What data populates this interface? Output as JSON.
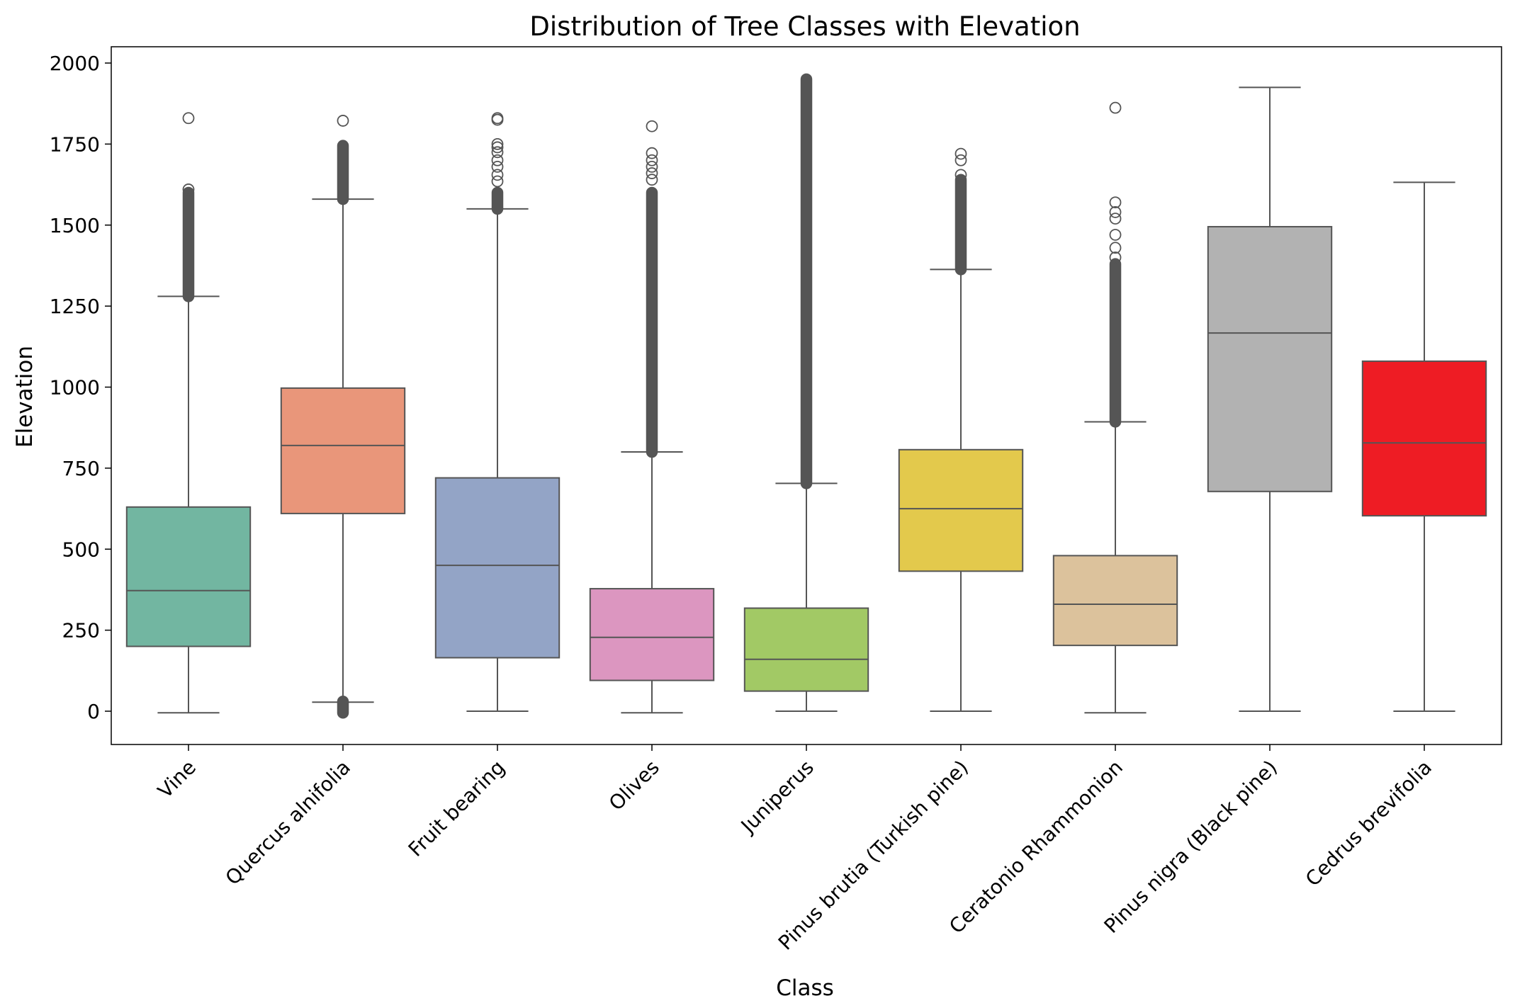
{
  "chart_data": {
    "type": "boxplot",
    "title": "Distribution of Tree Classes with Elevation",
    "xlabel": "Class",
    "ylabel": "Elevation",
    "ylim": [
      -103,
      2050
    ],
    "yticks": [
      0,
      250,
      500,
      750,
      1000,
      1250,
      1500,
      1750,
      2000
    ],
    "grid": false,
    "legend": "none",
    "categories": [
      "Vine",
      "Quercus alnifolia",
      "Fruit bearing",
      "Olives",
      "Juniperus",
      "Pinus brutia (Turkish pine)",
      "Ceratonio Rhammonion",
      "Pinus nigra (Black pine)",
      "Cedrus brevifolia"
    ],
    "boxes": [
      {
        "label": "Vine",
        "whisker_low": -5,
        "q1": 200,
        "median": 372,
        "q3": 630,
        "whisker_high": 1280,
        "color": "#72b6a1",
        "outliers_dense": [
          1280,
          1600
        ],
        "outliers": [
          1610,
          1830
        ]
      },
      {
        "label": "Quercus alnifolia",
        "whisker_low": 28,
        "q1": 610,
        "median": 820,
        "q3": 997,
        "whisker_high": 1580,
        "color": "#e9967a",
        "outliers_dense": [
          1580,
          1745
        ],
        "outliers": [
          1822
        ],
        "outliers_low_dense": [
          -5,
          30
        ]
      },
      {
        "label": "Fruit bearing",
        "whisker_low": 0,
        "q1": 165,
        "median": 450,
        "q3": 720,
        "whisker_high": 1550,
        "color": "#93a4c6",
        "outliers_dense": [
          1550,
          1600
        ],
        "outliers": [
          1635,
          1655,
          1680,
          1700,
          1725,
          1740,
          1750,
          1825,
          1830
        ]
      },
      {
        "label": "Olives",
        "whisker_low": -5,
        "q1": 95,
        "median": 228,
        "q3": 378,
        "whisker_high": 800,
        "color": "#dc96c0",
        "outliers_dense": [
          800,
          1600
        ],
        "outliers": [
          1640,
          1660,
          1680,
          1700,
          1722,
          1805
        ]
      },
      {
        "label": "Juniperus",
        "whisker_low": 0,
        "q1": 62,
        "median": 160,
        "q3": 318,
        "whisker_high": 703,
        "color": "#a2c965",
        "outliers_dense": [
          703,
          1950
        ],
        "outliers": []
      },
      {
        "label": "Pinus brutia (Turkish pine)",
        "whisker_low": 0,
        "q1": 432,
        "median": 625,
        "q3": 807,
        "whisker_high": 1363,
        "color": "#e3c94c",
        "outliers_dense": [
          1363,
          1640
        ],
        "outliers": [
          1655,
          1700,
          1720
        ]
      },
      {
        "label": "Ceratonio Rhammonion",
        "whisker_low": -5,
        "q1": 203,
        "median": 330,
        "q3": 480,
        "whisker_high": 893,
        "color": "#dcc29c",
        "outliers_dense": [
          893,
          1380
        ],
        "outliers": [
          1400,
          1430,
          1470,
          1520,
          1540,
          1570,
          1862
        ]
      },
      {
        "label": "Pinus nigra (Black pine)",
        "whisker_low": 0,
        "q1": 678,
        "median": 1167,
        "q3": 1495,
        "whisker_high": 1925,
        "color": "#b2b2b2",
        "outliers_dense": null,
        "outliers": []
      },
      {
        "label": "Cedrus brevifolia",
        "whisker_low": 0,
        "q1": 603,
        "median": 828,
        "q3": 1080,
        "whisker_high": 1632,
        "color": "#ee1c24",
        "outliers_dense": null,
        "outliers": []
      }
    ]
  }
}
